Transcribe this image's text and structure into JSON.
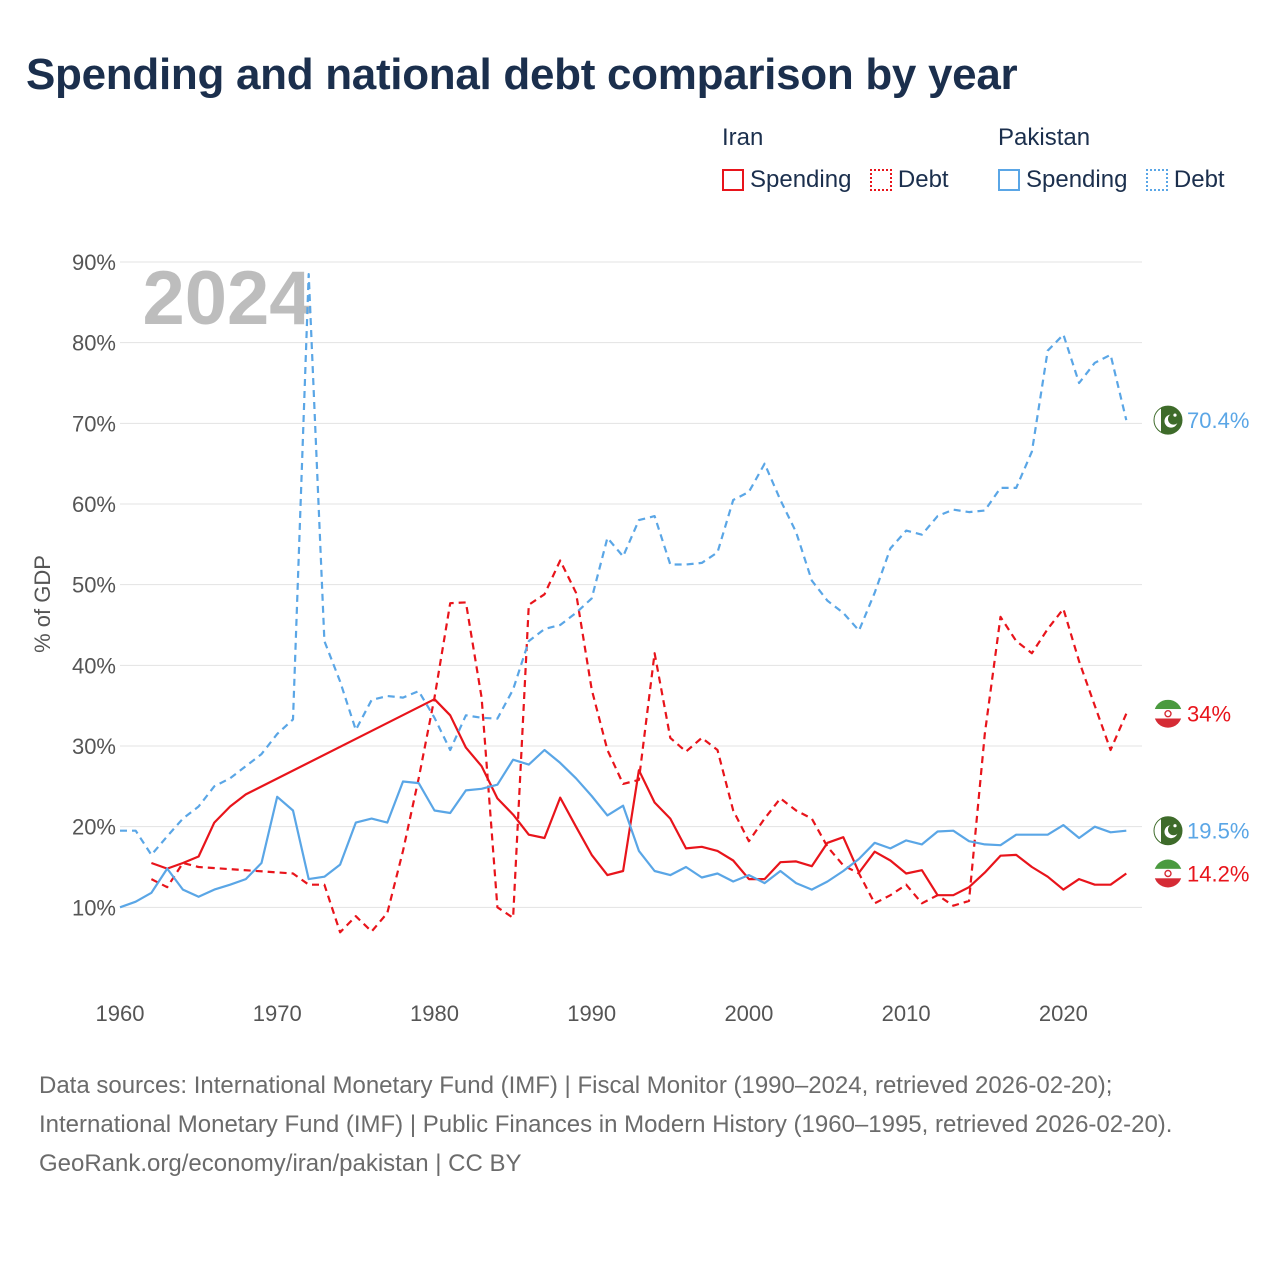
{
  "title": "Spending and national debt comparison by year",
  "legend": {
    "groups": [
      {
        "name": "Iran",
        "items": [
          {
            "label": "Spending",
            "style": "solid",
            "color": "#e8141b"
          },
          {
            "label": "Debt",
            "style": "dotted",
            "color": "#e8141b"
          }
        ]
      },
      {
        "name": "Pakistan",
        "items": [
          {
            "label": "Spending",
            "style": "solid",
            "color": "#5aa6e6"
          },
          {
            "label": "Debt",
            "style": "dotted",
            "color": "#5aa6e6"
          }
        ]
      }
    ]
  },
  "chart_data": {
    "type": "line",
    "title": "Spending and national debt comparison by year",
    "ylabel": "% of GDP",
    "xlabel": "",
    "xlim": [
      1960,
      2025
    ],
    "ylim": [
      0,
      90
    ],
    "x_ticks": [
      "1960",
      "1970",
      "1980",
      "1990",
      "2000",
      "2010",
      "2020"
    ],
    "y_ticks": [
      "10%",
      "20%",
      "30%",
      "40%",
      "50%",
      "60%",
      "70%",
      "80%",
      "90%"
    ],
    "year_watermark": "2024",
    "series": [
      {
        "name": "Iran Spending",
        "country": "Iran",
        "metric": "Spending",
        "color": "#e8141b",
        "dashed": false,
        "x": [
          1962,
          1963,
          1964,
          1965,
          1966,
          1967,
          1968,
          1980,
          1981,
          1982,
          1983,
          1984,
          1985,
          1986,
          1987,
          1988,
          1989,
          1990,
          1991,
          1992,
          1993,
          1994,
          1995,
          1996,
          1997,
          1998,
          1999,
          2000,
          2001,
          2002,
          2003,
          2004,
          2005,
          2006,
          2007,
          2008,
          2009,
          2010,
          2011,
          2012,
          2013,
          2014,
          2015,
          2016,
          2017,
          2018,
          2019,
          2020,
          2021,
          2022,
          2023,
          2024
        ],
        "y": [
          15.5,
          14.8,
          15.5,
          16.3,
          20.5,
          22.5,
          24.0,
          35.8,
          33.8,
          29.8,
          27.5,
          23.5,
          21.5,
          19.0,
          18.6,
          23.6,
          20.0,
          16.5,
          14.0,
          14.5,
          27.0,
          23.0,
          21.0,
          17.3,
          17.5,
          17.0,
          15.8,
          13.5,
          13.5,
          15.6,
          15.7,
          15.1,
          18.0,
          18.7,
          14.3,
          16.9,
          15.8,
          14.2,
          14.6,
          11.5,
          11.5,
          12.5,
          14.3,
          16.4,
          16.5,
          15.0,
          13.8,
          12.2,
          13.5,
          12.8,
          12.8,
          14.2
        ],
        "end_label": "14.2%"
      },
      {
        "name": "Iran Debt",
        "country": "Iran",
        "metric": "Debt",
        "color": "#e8141b",
        "dashed": true,
        "x": [
          1962,
          1963,
          1964,
          1965,
          1971,
          1972,
          1973,
          1974,
          1975,
          1976,
          1977,
          1978,
          1979,
          1980,
          1981,
          1982,
          1983,
          1984,
          1985,
          1986,
          1987,
          1988,
          1989,
          1990,
          1991,
          1992,
          1993,
          1994,
          1995,
          1996,
          1997,
          1998,
          1999,
          2000,
          2001,
          2002,
          2003,
          2004,
          2005,
          2006,
          2007,
          2008,
          2009,
          2010,
          2011,
          2012,
          2013,
          2014,
          2015,
          2016,
          2017,
          2018,
          2019,
          2020,
          2021,
          2022,
          2023,
          2024
        ],
        "y": [
          13.5,
          12.5,
          15.5,
          15.0,
          14.2,
          12.8,
          12.8,
          6.9,
          8.9,
          7.0,
          9.3,
          17.0,
          26.0,
          36.0,
          47.7,
          47.8,
          36.0,
          10.0,
          8.7,
          47.5,
          48.8,
          53.0,
          49.0,
          37.0,
          29.5,
          25.3,
          25.8,
          41.5,
          31.0,
          29.3,
          31.0,
          29.5,
          22.0,
          18.2,
          21.0,
          23.5,
          22.0,
          21.0,
          17.5,
          15.2,
          14.2,
          10.5,
          11.5,
          12.8,
          10.5,
          11.5,
          10.2,
          10.8,
          31.5,
          46.0,
          43.0,
          41.5,
          44.5,
          47.0,
          40.5,
          35.0,
          29.5,
          34.0
        ],
        "end_label": "34%"
      },
      {
        "name": "Pakistan Spending",
        "country": "Pakistan",
        "metric": "Spending",
        "color": "#5aa6e6",
        "dashed": false,
        "x": [
          1960,
          1961,
          1962,
          1963,
          1964,
          1965,
          1966,
          1967,
          1968,
          1969,
          1970,
          1971,
          1972,
          1973,
          1974,
          1975,
          1976,
          1977,
          1978,
          1979,
          1980,
          1981,
          1982,
          1983,
          1984,
          1985,
          1986,
          1987,
          1988,
          1989,
          1990,
          1991,
          1992,
          1993,
          1994,
          1995,
          1996,
          1997,
          1998,
          1999,
          2000,
          2001,
          2002,
          2003,
          2004,
          2005,
          2006,
          2007,
          2008,
          2009,
          2010,
          2011,
          2012,
          2013,
          2014,
          2015,
          2016,
          2017,
          2018,
          2019,
          2020,
          2021,
          2022,
          2023,
          2024
        ],
        "y": [
          10.0,
          10.7,
          11.8,
          14.8,
          12.2,
          11.3,
          12.2,
          12.8,
          13.5,
          15.5,
          23.7,
          22.0,
          13.5,
          13.8,
          15.3,
          20.5,
          21.0,
          20.5,
          25.6,
          25.4,
          22.0,
          21.7,
          24.5,
          24.7,
          25.2,
          28.3,
          27.7,
          29.5,
          27.9,
          26.0,
          23.8,
          21.4,
          22.6,
          17.0,
          14.5,
          14.0,
          15.0,
          13.7,
          14.2,
          13.2,
          14.0,
          13.0,
          14.5,
          13.0,
          12.2,
          13.2,
          14.5,
          16.0,
          18.0,
          17.3,
          18.3,
          17.8,
          19.4,
          19.5,
          18.2,
          17.8,
          17.7,
          19.0,
          19.0,
          19.0,
          20.2,
          18.6,
          20.0,
          19.3,
          19.5
        ],
        "end_label": "19.5%"
      },
      {
        "name": "Pakistan Debt",
        "country": "Pakistan",
        "metric": "Debt",
        "color": "#5aa6e6",
        "dashed": true,
        "x": [
          1960,
          1961,
          1962,
          1963,
          1964,
          1965,
          1966,
          1967,
          1968,
          1969,
          1970,
          1971,
          1972,
          1973,
          1974,
          1975,
          1976,
          1977,
          1978,
          1979,
          1980,
          1981,
          1982,
          1983,
          1984,
          1985,
          1986,
          1987,
          1988,
          1989,
          1990,
          1991,
          1992,
          1993,
          1994,
          1995,
          1996,
          1997,
          1998,
          1999,
          2000,
          2001,
          2002,
          2003,
          2004,
          2005,
          2006,
          2007,
          2008,
          2009,
          2010,
          2011,
          2012,
          2013,
          2014,
          2015,
          2016,
          2017,
          2018,
          2019,
          2020,
          2021,
          2022,
          2023,
          2024
        ],
        "y": [
          19.5,
          19.5,
          16.5,
          18.8,
          21.0,
          22.5,
          25.0,
          26.0,
          27.5,
          29.0,
          31.5,
          33.3,
          88.5,
          43.0,
          38.0,
          32.0,
          35.7,
          36.2,
          36.0,
          36.8,
          33.5,
          29.5,
          33.8,
          33.5,
          33.4,
          37.0,
          43.0,
          44.5,
          45.0,
          46.5,
          48.3,
          55.8,
          53.5,
          58.0,
          58.5,
          52.5,
          52.5,
          52.7,
          54.0,
          60.5,
          61.5,
          65.0,
          60.5,
          56.5,
          50.5,
          48.0,
          46.5,
          44.3,
          49.0,
          54.5,
          56.7,
          56.2,
          58.5,
          59.3,
          59.0,
          59.2,
          62.0,
          62.0,
          66.5,
          79.0,
          81.0,
          75.0,
          77.5,
          78.5,
          70.4
        ],
        "end_label": "70.4%"
      }
    ]
  },
  "footer": {
    "sources": "Data sources: International Monetary Fund (IMF) | Fiscal Monitor (1990–2024, retrieved 2026-02-20); International Monetary Fund (IMF) | Public Finances in Modern History (1960–1995, retrieved 2026-02-20).",
    "credit": "GeoRank.org/economy/iran/pakistan | CC BY"
  }
}
